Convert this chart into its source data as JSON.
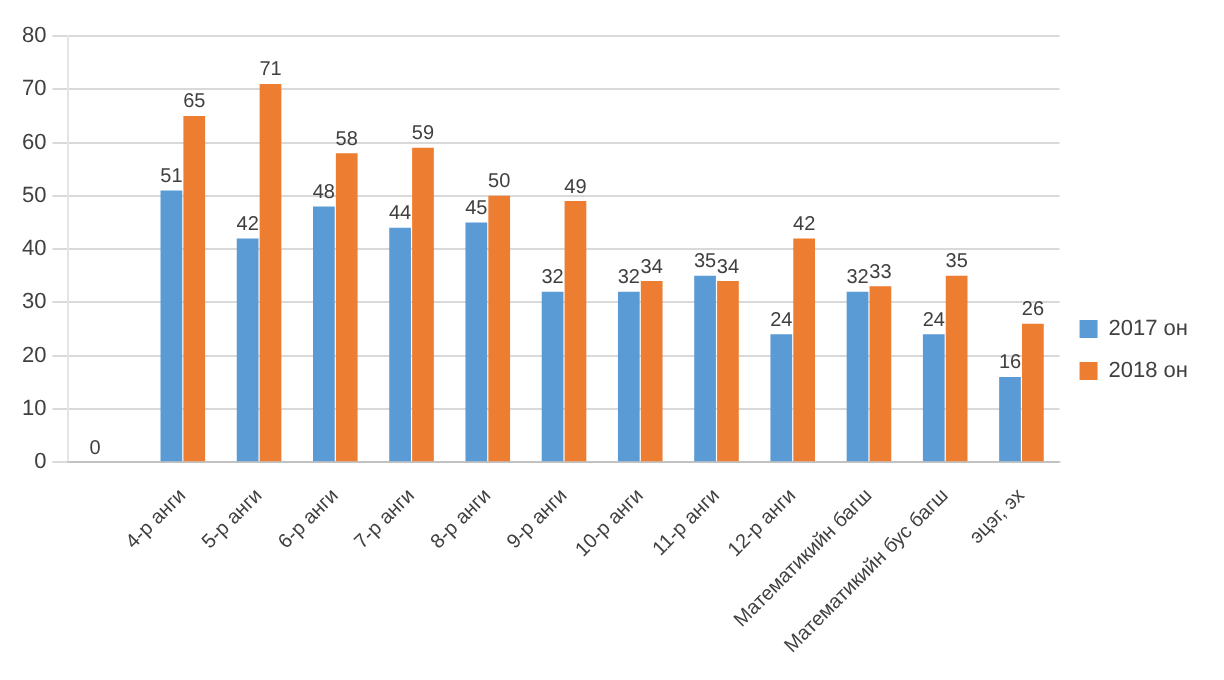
{
  "chart_data": {
    "type": "bar",
    "categories": [
      null,
      "4-р анги",
      "5-р анги",
      "6-р анги",
      "7-р анги",
      "8-р анги",
      "9-р анги",
      "10-р анги",
      "11-р анги",
      "12-р анги",
      "Математикийн багш",
      "Математикийн бус багш",
      "эцэг, эх"
    ],
    "series": [
      {
        "name": "2017 он",
        "color": "#5b9bd5",
        "values": [
          0,
          51,
          42,
          48,
          44,
          45,
          32,
          32,
          35,
          24,
          32,
          24,
          16
        ]
      },
      {
        "name": "2018 он",
        "color": "#ed7d31",
        "values": [
          null,
          65,
          71,
          58,
          59,
          50,
          49,
          34,
          34,
          42,
          33,
          35,
          26
        ]
      }
    ],
    "ylim": [
      0,
      80
    ],
    "yticks": [
      0,
      10,
      20,
      30,
      40,
      50,
      60,
      70,
      80
    ],
    "grid": "y",
    "legend": "right",
    "data_labels": true
  }
}
